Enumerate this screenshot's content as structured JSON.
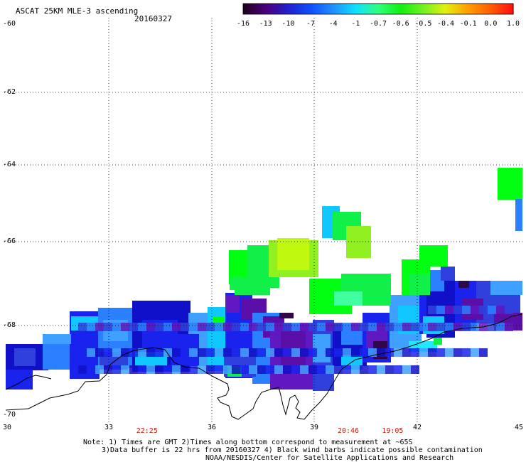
{
  "header": {
    "title": "ASCAT 25KM MLE-3 ascending",
    "date": "20160327"
  },
  "colorbar": {
    "labels": [
      "-16",
      "-13",
      "-10",
      "-7",
      "-4",
      "-1",
      "-0.7",
      "-0.6",
      "-0.5",
      "-0.4",
      "-0.1",
      "0.0",
      "1.0"
    ],
    "colors": [
      "#200020",
      "#4a0080",
      "#2020d0",
      "#1050ff",
      "#2090ff",
      "#10e0ff",
      "#30ff80",
      "#10f010",
      "#70f020",
      "#e0f010",
      "#ffa000",
      "#ff6000",
      "#ff1010"
    ]
  },
  "axes": {
    "y_labels": [
      "-60",
      "-62",
      "-64",
      "-66",
      "-68",
      "-70"
    ],
    "x_labels": [
      "30",
      "33",
      "36",
      "39",
      "42",
      "45"
    ]
  },
  "times": [
    {
      "label": "22:25",
      "lon": 34.1
    },
    {
      "label": "20:46",
      "lon": 40.0
    },
    {
      "label": "19:05",
      "lon": 41.3
    }
  ],
  "notes": {
    "line1": "Note: 1) Times are GMT 2)Times along bottom correspond to measurement at ~65S",
    "line2": "3)Data buffer is 22 hrs from 20160327 4) Black wind barbs indicate possible contamination",
    "line3": "NOAA/NESDIS/Center for Satellite Applications and Research"
  }
}
